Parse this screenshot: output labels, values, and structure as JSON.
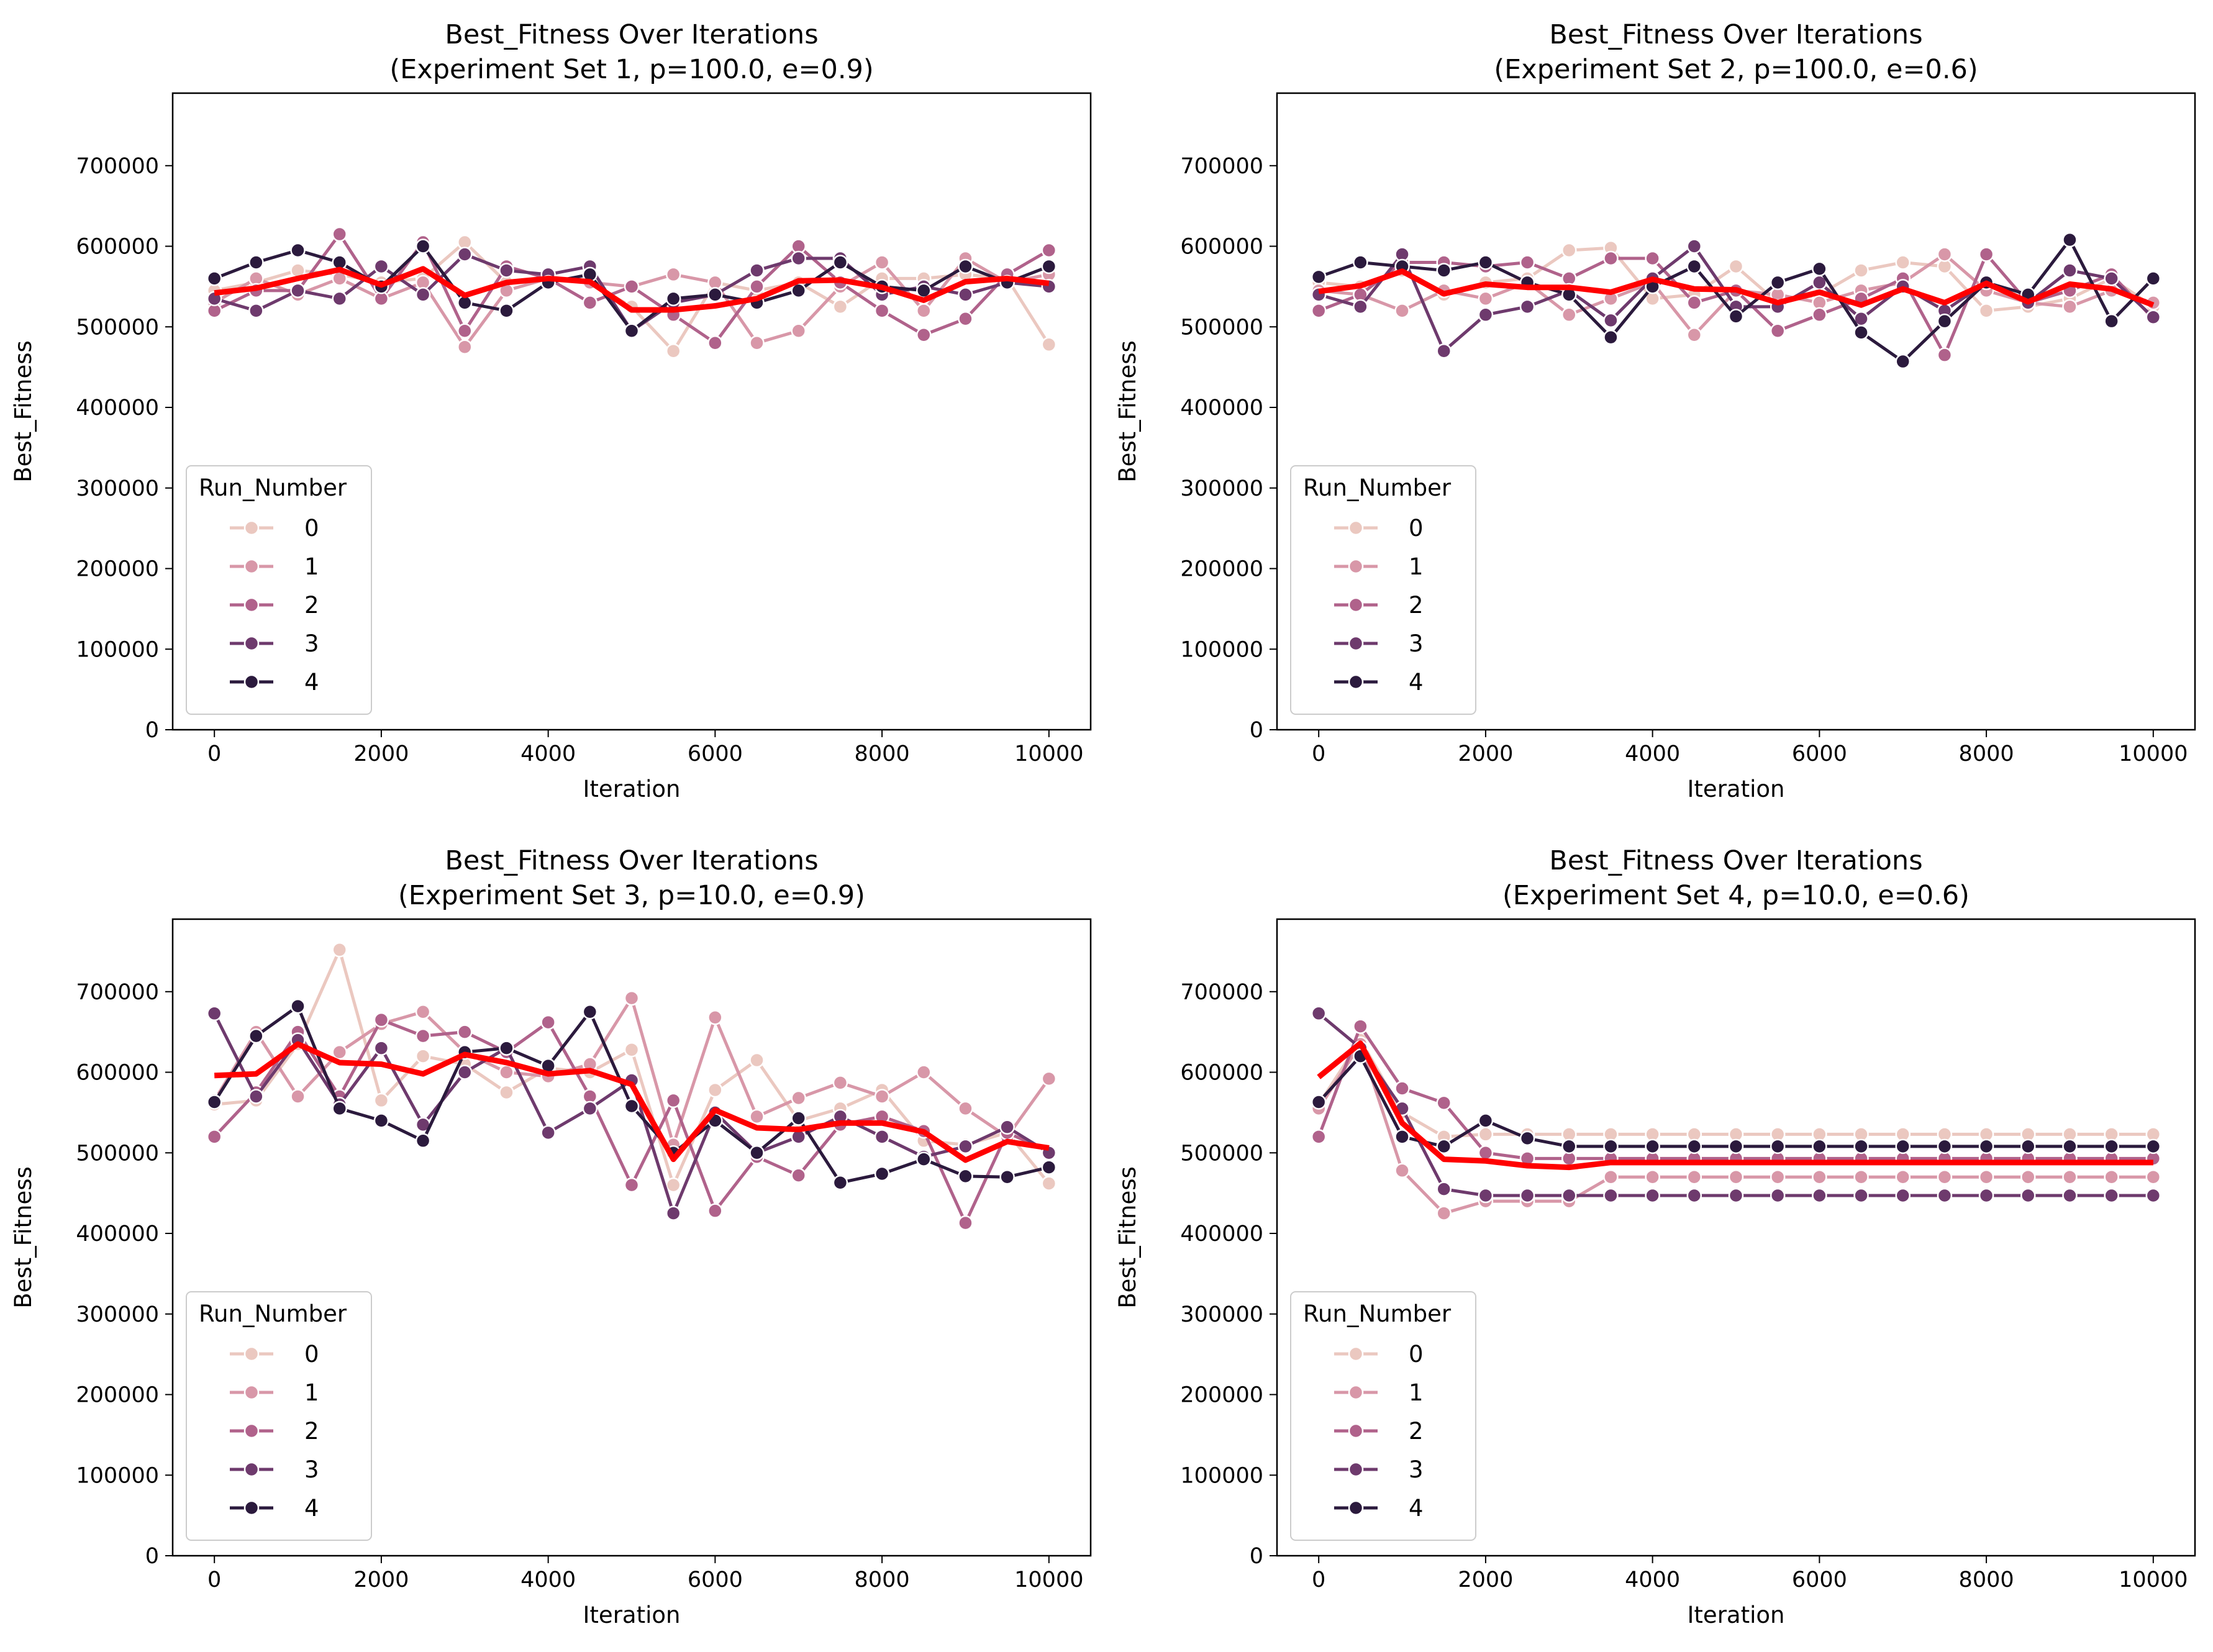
{
  "chart_data": [
    {
      "type": "line",
      "title": "Best_Fitness Over Iterations",
      "subtitle": "(Experiment Set 1, p=100.0, e=0.9)",
      "xlabel": "Iteration",
      "ylabel": "Best_Fitness",
      "xlim": [
        -500,
        10500
      ],
      "ylim": [
        0,
        790000
      ],
      "xticks": [
        "0",
        "2000",
        "4000",
        "6000",
        "8000",
        "10000"
      ],
      "yticks": [
        "0",
        "100000",
        "200000",
        "300000",
        "400000",
        "500000",
        "600000",
        "700000"
      ],
      "legend": {
        "title": "Run_Number",
        "position": "lower left"
      },
      "x": [
        0,
        500,
        1000,
        1500,
        2000,
        2500,
        3000,
        3500,
        4000,
        4500,
        5000,
        5500,
        6000,
        6500,
        7000,
        7500,
        8000,
        8500,
        9000,
        9500,
        10000
      ],
      "series": [
        {
          "name": "0",
          "values": [
            545000,
            555000,
            570000,
            565000,
            555000,
            560000,
            605000,
            555000,
            560000,
            555000,
            525000,
            470000,
            555000,
            545000,
            555000,
            525000,
            560000,
            560000,
            565000,
            560000,
            478000
          ]
        },
        {
          "name": "1",
          "values": [
            530000,
            560000,
            540000,
            560000,
            535000,
            555000,
            475000,
            545000,
            560000,
            555000,
            550000,
            565000,
            555000,
            480000,
            495000,
            550000,
            580000,
            520000,
            585000,
            555000,
            565000
          ]
        },
        {
          "name": "2",
          "values": [
            520000,
            545000,
            545000,
            615000,
            535000,
            605000,
            495000,
            575000,
            560000,
            530000,
            550000,
            515000,
            480000,
            550000,
            600000,
            555000,
            520000,
            490000,
            510000,
            565000,
            595000
          ]
        },
        {
          "name": "3",
          "values": [
            535000,
            520000,
            545000,
            535000,
            575000,
            540000,
            590000,
            570000,
            565000,
            575000,
            495000,
            530000,
            540000,
            570000,
            585000,
            585000,
            540000,
            550000,
            540000,
            555000,
            550000
          ]
        },
        {
          "name": "4",
          "values": [
            560000,
            580000,
            595000,
            580000,
            550000,
            600000,
            530000,
            520000,
            555000,
            565000,
            495000,
            535000,
            540000,
            530000,
            545000,
            580000,
            550000,
            545000,
            575000,
            555000,
            575000
          ]
        }
      ],
      "mean_line": [
        542000,
        548000,
        560000,
        571000,
        552000,
        572000,
        539000,
        555000,
        560000,
        556000,
        521000,
        521000,
        526000,
        535000,
        557000,
        558000,
        549000,
        533000,
        556000,
        560000,
        554000
      ]
    },
    {
      "type": "line",
      "title": "Best_Fitness Over Iterations",
      "subtitle": "(Experiment Set 2, p=100.0, e=0.6)",
      "xlabel": "Iteration",
      "ylabel": "Best_Fitness",
      "xlim": [
        -500,
        10500
      ],
      "ylim": [
        0,
        790000
      ],
      "xticks": [
        "0",
        "2000",
        "4000",
        "6000",
        "8000",
        "10000"
      ],
      "yticks": [
        "0",
        "100000",
        "200000",
        "300000",
        "400000",
        "500000",
        "600000",
        "700000"
      ],
      "legend": {
        "title": "Run_Number",
        "position": "lower left"
      },
      "x": [
        0,
        500,
        1000,
        1500,
        2000,
        2500,
        3000,
        3500,
        4000,
        4500,
        5000,
        5500,
        6000,
        6500,
        7000,
        7500,
        8000,
        8500,
        9000,
        9500,
        10000
      ],
      "series": [
        {
          "name": "0",
          "values": [
            555000,
            550000,
            570000,
            540000,
            555000,
            560000,
            595000,
            598000,
            535000,
            540000,
            575000,
            530000,
            540000,
            570000,
            580000,
            575000,
            520000,
            525000,
            535000,
            560000,
            525000
          ]
        },
        {
          "name": "1",
          "values": [
            545000,
            540000,
            520000,
            545000,
            535000,
            555000,
            515000,
            535000,
            555000,
            490000,
            545000,
            540000,
            530000,
            545000,
            555000,
            590000,
            545000,
            530000,
            525000,
            545000,
            530000
          ]
        },
        {
          "name": "2",
          "values": [
            520000,
            540000,
            580000,
            580000,
            575000,
            580000,
            560000,
            585000,
            585000,
            530000,
            545000,
            495000,
            515000,
            535000,
            560000,
            465000,
            590000,
            530000,
            545000,
            565000,
            510000
          ]
        },
        {
          "name": "3",
          "values": [
            540000,
            525000,
            590000,
            470000,
            515000,
            525000,
            545000,
            508000,
            560000,
            600000,
            525000,
            525000,
            555000,
            510000,
            550000,
            520000,
            555000,
            530000,
            570000,
            560000,
            512000
          ]
        },
        {
          "name": "4",
          "values": [
            562000,
            580000,
            575000,
            570000,
            580000,
            555000,
            540000,
            487000,
            550000,
            575000,
            513000,
            555000,
            572000,
            493000,
            457000,
            507000,
            555000,
            540000,
            608000,
            507000,
            560000
          ]
        }
      ],
      "mean_line": [
        544000,
        551000,
        569000,
        541000,
        553000,
        549000,
        549000,
        543000,
        559000,
        547000,
        546000,
        530000,
        543000,
        527000,
        547000,
        530000,
        554000,
        531000,
        553000,
        547000,
        527000
      ]
    },
    {
      "type": "line",
      "title": "Best_Fitness Over Iterations",
      "subtitle": "(Experiment Set 3, p=10.0, e=0.9)",
      "xlabel": "Iteration",
      "ylabel": "Best_Fitness",
      "xlim": [
        -500,
        10500
      ],
      "ylim": [
        0,
        790000
      ],
      "xticks": [
        "0",
        "2000",
        "4000",
        "6000",
        "8000",
        "10000"
      ],
      "yticks": [
        "0",
        "100000",
        "200000",
        "300000",
        "400000",
        "500000",
        "600000",
        "700000"
      ],
      "legend": {
        "title": "Run_Number",
        "position": "lower left"
      },
      "x": [
        0,
        500,
        1000,
        1500,
        2000,
        2500,
        3000,
        3500,
        4000,
        4500,
        5000,
        5500,
        6000,
        6500,
        7000,
        7500,
        8000,
        8500,
        9000,
        9500,
        10000
      ],
      "series": [
        {
          "name": "0",
          "values": [
            560000,
            565000,
            635000,
            752000,
            565000,
            620000,
            610000,
            575000,
            605000,
            600000,
            628000,
            460000,
            578000,
            615000,
            540000,
            555000,
            578000,
            515000,
            510000,
            525000,
            462000
          ]
        },
        {
          "name": "1",
          "values": [
            565000,
            650000,
            570000,
            625000,
            660000,
            675000,
            625000,
            600000,
            595000,
            610000,
            692000,
            510000,
            668000,
            545000,
            568000,
            587000,
            570000,
            600000,
            555000,
            520000,
            592000
          ]
        },
        {
          "name": "2",
          "values": [
            520000,
            575000,
            650000,
            570000,
            665000,
            645000,
            650000,
            625000,
            662000,
            570000,
            460000,
            565000,
            428000,
            495000,
            472000,
            535000,
            545000,
            527000,
            413000,
            525000,
            502000
          ]
        },
        {
          "name": "3",
          "values": [
            673000,
            570000,
            640000,
            560000,
            630000,
            535000,
            600000,
            630000,
            525000,
            555000,
            590000,
            425000,
            550000,
            500000,
            520000,
            545000,
            520000,
            495000,
            508000,
            532000,
            500000
          ]
        },
        {
          "name": "4",
          "values": [
            563000,
            645000,
            682000,
            555000,
            540000,
            515000,
            625000,
            630000,
            608000,
            675000,
            558000,
            500000,
            540000,
            500000,
            543000,
            463000,
            474000,
            492000,
            471000,
            470000,
            482000
          ]
        }
      ],
      "mean_line": [
        596000,
        598000,
        635000,
        612000,
        610000,
        598000,
        622000,
        612000,
        598000,
        602000,
        585000,
        492000,
        553000,
        531000,
        529000,
        537000,
        537000,
        526000,
        491000,
        514000,
        506000
      ]
    },
    {
      "type": "line",
      "title": "Best_Fitness Over Iterations",
      "subtitle": "(Experiment Set 4, p=10.0, e=0.6)",
      "xlabel": "Iteration",
      "ylabel": "Best_Fitness",
      "xlim": [
        -500,
        10500
      ],
      "ylim": [
        0,
        790000
      ],
      "xticks": [
        "0",
        "2000",
        "4000",
        "6000",
        "8000",
        "10000"
      ],
      "yticks": [
        "0",
        "100000",
        "200000",
        "300000",
        "400000",
        "500000",
        "600000",
        "700000"
      ],
      "legend": {
        "title": "Run_Number",
        "position": "lower left"
      },
      "x": [
        0,
        500,
        1000,
        1500,
        2000,
        2500,
        3000,
        3500,
        4000,
        4500,
        5000,
        5500,
        6000,
        6500,
        7000,
        7500,
        8000,
        8500,
        9000,
        9500,
        10000
      ],
      "series": [
        {
          "name": "0",
          "values": [
            560000,
            640000,
            550000,
            520000,
            523000,
            523000,
            523000,
            523000,
            523000,
            523000,
            523000,
            523000,
            523000,
            523000,
            523000,
            523000,
            523000,
            523000,
            523000,
            523000,
            523000
          ]
        },
        {
          "name": "1",
          "values": [
            555000,
            635000,
            478000,
            425000,
            440000,
            440000,
            440000,
            470000,
            470000,
            470000,
            470000,
            470000,
            470000,
            470000,
            470000,
            470000,
            470000,
            470000,
            470000,
            470000,
            470000
          ]
        },
        {
          "name": "2",
          "values": [
            520000,
            657000,
            580000,
            562000,
            500000,
            493000,
            493000,
            493000,
            493000,
            493000,
            493000,
            493000,
            493000,
            493000,
            493000,
            493000,
            493000,
            493000,
            493000,
            493000,
            493000
          ]
        },
        {
          "name": "3",
          "values": [
            673000,
            630000,
            555000,
            455000,
            447000,
            447000,
            447000,
            447000,
            447000,
            447000,
            447000,
            447000,
            447000,
            447000,
            447000,
            447000,
            447000,
            447000,
            447000,
            447000,
            447000
          ]
        },
        {
          "name": "4",
          "values": [
            563000,
            620000,
            520000,
            508000,
            540000,
            518000,
            508000,
            508000,
            508000,
            508000,
            508000,
            508000,
            508000,
            508000,
            508000,
            508000,
            508000,
            508000,
            508000,
            508000,
            508000
          ]
        }
      ],
      "mean_line": [
        594000,
        636000,
        537000,
        492000,
        490000,
        484000,
        482000,
        488000,
        488000,
        488000,
        488000,
        488000,
        488000,
        488000,
        488000,
        488000,
        488000,
        488000,
        488000,
        488000,
        488000
      ]
    }
  ],
  "colors": {
    "runs": [
      "#ebc8c0",
      "#d897a8",
      "#b0628b",
      "#6e3a6d",
      "#2b1a3d"
    ],
    "mean": "#ff0000",
    "axes": "#000000",
    "background": "#ffffff"
  }
}
